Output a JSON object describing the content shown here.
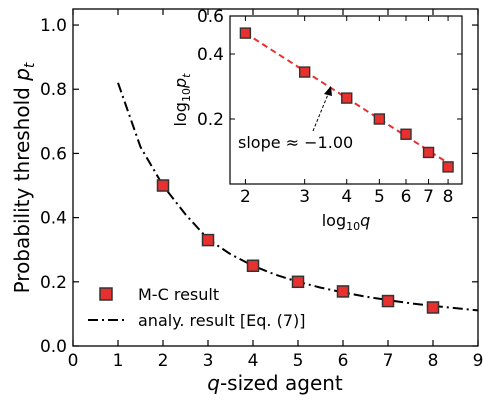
{
  "chart_data": [
    {
      "type": "scatter",
      "xlabel": "q-sized agent",
      "ylabel": "Probability threshold p_t",
      "xlim": [
        0,
        9
      ],
      "ylim": [
        0,
        1.05
      ],
      "xticks": [
        "0",
        "1",
        "2",
        "3",
        "4",
        "5",
        "6",
        "7",
        "8",
        "9"
      ],
      "yticks": [
        "0.0",
        "0.2",
        "0.4",
        "0.6",
        "0.8",
        "1.0"
      ],
      "legend_position": "bottom-left",
      "series": [
        {
          "name": "M-C result",
          "type": "scatter",
          "marker": "square",
          "color": "#e8312f",
          "x": [
            2,
            3,
            4,
            5,
            6,
            7,
            8
          ],
          "y": [
            0.5,
            0.33,
            0.25,
            0.2,
            0.17,
            0.14,
            0.12
          ]
        },
        {
          "name": "analy. result [Eq. (7)]",
          "type": "line",
          "style": "dash-dot",
          "color": "#000000",
          "x": [
            1,
            1.5,
            2,
            2.5,
            3,
            3.5,
            4,
            4.5,
            5,
            5.5,
            6,
            6.5,
            7,
            7.5,
            8,
            8.5,
            9
          ],
          "y": [
            0.82,
            0.62,
            0.5,
            0.41,
            0.333,
            0.286,
            0.25,
            0.222,
            0.2,
            0.182,
            0.167,
            0.154,
            0.143,
            0.133,
            0.125,
            0.118,
            0.111
          ]
        }
      ]
    },
    {
      "type": "scatter",
      "scale": "log-log",
      "xlabel": "log10q",
      "ylabel": "log10pt",
      "xlim": [
        1.8,
        8.8
      ],
      "ylim": [
        0.1,
        0.6
      ],
      "xticks": [
        "2",
        "3",
        "4",
        "5",
        "6",
        "7",
        "8"
      ],
      "yticks": [
        "0.2",
        "0.4",
        "0.6"
      ],
      "annotation": "slope ≈ −1.00",
      "series": [
        {
          "marker": "square",
          "color": "#e8312f",
          "x": [
            2,
            3,
            4,
            5,
            6,
            7,
            8
          ],
          "y": [
            0.5,
            0.33,
            0.25,
            0.2,
            0.17,
            0.14,
            0.12
          ]
        },
        {
          "type": "fit-line",
          "style": "dashed",
          "color": "#e8312f",
          "x": [
            2,
            8
          ],
          "y": [
            0.5,
            0.125
          ]
        }
      ]
    }
  ]
}
